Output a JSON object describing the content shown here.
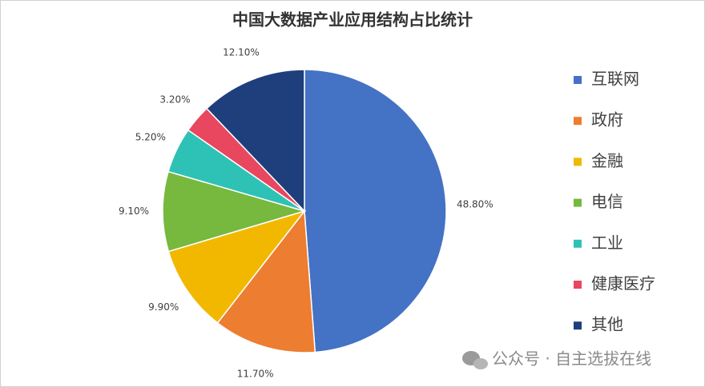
{
  "chart_data": {
    "type": "pie",
    "title": "中国大数据产业应用结构占比统计",
    "categories": [
      "互联网",
      "政府",
      "金融",
      "电信",
      "工业",
      "健康医疗",
      "其他"
    ],
    "values": [
      48.8,
      11.7,
      9.9,
      9.1,
      5.2,
      3.2,
      12.1
    ],
    "value_labels": [
      "48.80%",
      "11.70%",
      "9.90%",
      "9.10%",
      "5.20%",
      "3.20%",
      "12.10%"
    ],
    "colors": [
      "#4472c4",
      "#ed7d31",
      "#f2b800",
      "#77b83f",
      "#2ec2b6",
      "#e8475f",
      "#1f3f7c"
    ],
    "legend": "right",
    "watermark": "公众号 · 自主选拔在线"
  }
}
